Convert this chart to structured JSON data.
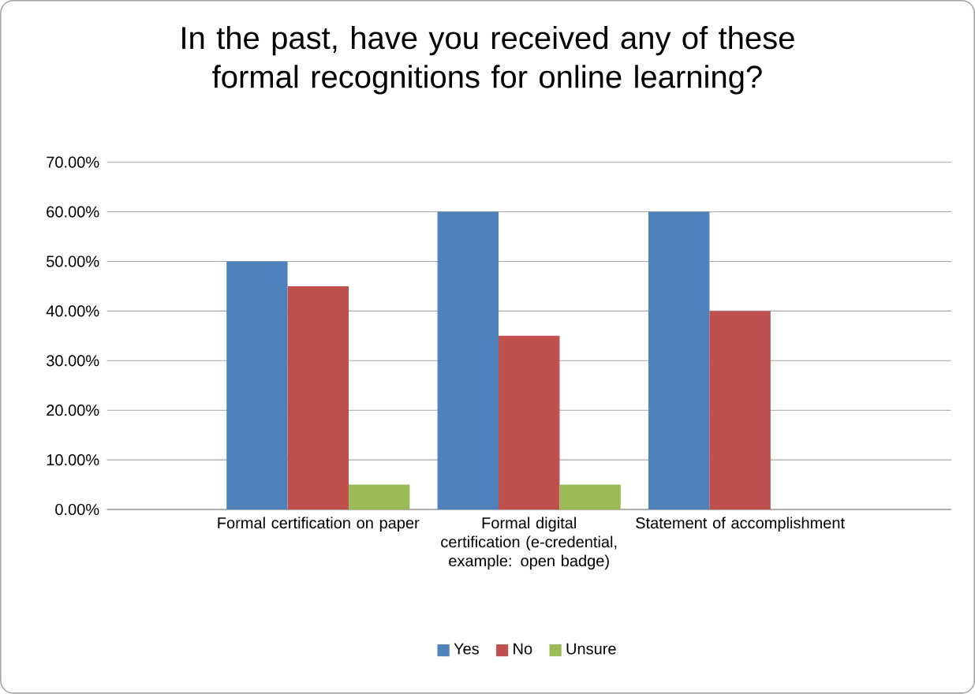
{
  "chart_data": {
    "type": "bar",
    "title": "In the past, have you received any of these formal recognitions for online learning?",
    "categories": [
      "Formal certification on paper",
      "Formal digital certification (e-credential, example: open badge)",
      "Statement of accomplishment"
    ],
    "series": [
      {
        "name": "Yes",
        "color": "#4f81bd",
        "values": [
          50,
          60,
          60
        ]
      },
      {
        "name": "No",
        "color": "#c0504d",
        "values": [
          45,
          35,
          40
        ]
      },
      {
        "name": "Unsure",
        "color": "#9bbb59",
        "values": [
          5,
          5,
          0
        ]
      }
    ],
    "ylim": [
      0,
      70
    ],
    "yticks": [
      {
        "value": 0,
        "label": "0.00%"
      },
      {
        "value": 10,
        "label": "10.00%"
      },
      {
        "value": 20,
        "label": "20.00%"
      },
      {
        "value": 30,
        "label": "30.00%"
      },
      {
        "value": 40,
        "label": "40.00%"
      },
      {
        "value": 50,
        "label": "50.00%"
      },
      {
        "value": 60,
        "label": "60.00%"
      },
      {
        "value": 70,
        "label": "70.00%"
      }
    ],
    "grid": "y",
    "legend": "bottom"
  }
}
